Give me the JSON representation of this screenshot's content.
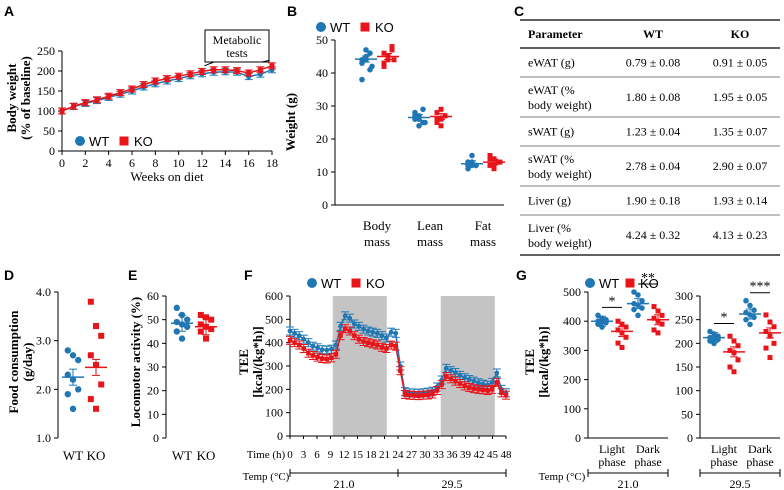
{
  "colors": {
    "wt": "#1f77b4",
    "ko": "#e8141a",
    "shade": "#c4c4c4"
  },
  "legend": {
    "wt": "WT",
    "ko": "KO"
  },
  "panel_labels": {
    "a": "A",
    "b": "B",
    "c": "C",
    "d": "D",
    "e": "E",
    "f": "F",
    "g": "G"
  },
  "table": {
    "headers": [
      "Parameter",
      "WT",
      "KO"
    ],
    "rows": [
      {
        "param": [
          "eWAT (g)"
        ],
        "wt": "0.79 ± 0.08",
        "ko": "0.91 ± 0.05"
      },
      {
        "param": [
          "eWAT (%",
          "body weight)"
        ],
        "wt": "1.80 ± 0.08",
        "ko": "1.95 ± 0.05"
      },
      {
        "param": [
          "sWAT (g)"
        ],
        "wt": "1.23 ± 0.04",
        "ko": "1.35 ± 0.07"
      },
      {
        "param": [
          "sWAT (%",
          "body weight)"
        ],
        "wt": "2.78 ± 0.04",
        "ko": "2.90 ± 0.07"
      },
      {
        "param": [
          "Liver (g)"
        ],
        "wt": "1.90 ± 0.18",
        "ko": "1.93 ± 0.14"
      },
      {
        "param": [
          "Liver (%",
          "body weight)"
        ],
        "wt": "4.24 ± 0.32",
        "ko": "4.13 ± 0.23"
      }
    ]
  },
  "chart_data": [
    {
      "id": "A",
      "type": "line",
      "ylabel": [
        "Body weight",
        "(% of baseline)"
      ],
      "xlabel": "Weeks on diet",
      "xlim": [
        0,
        18
      ],
      "ylim": [
        0,
        250
      ],
      "xticks": [
        "0",
        "2",
        "4",
        "6",
        "8",
        "10",
        "12",
        "14",
        "16",
        "18"
      ],
      "yticks": [
        "0",
        "50",
        "100",
        "150",
        "200",
        "250"
      ],
      "annotation": [
        "Metabolic",
        "tests"
      ],
      "x": [
        0,
        1,
        2,
        3,
        4,
        5,
        6,
        7,
        8,
        9,
        10,
        11,
        12,
        13,
        14,
        15,
        16,
        17,
        18
      ],
      "series": [
        {
          "name": "WT",
          "values": [
            100,
            111,
            119,
            126,
            134,
            142,
            150,
            160,
            168,
            175,
            181,
            188,
            193,
            197,
            198,
            197,
            186,
            192,
            203
          ]
        },
        {
          "name": "KO",
          "values": [
            100,
            112,
            121,
            128,
            137,
            146,
            155,
            166,
            175,
            181,
            187,
            193,
            199,
            203,
            203,
            201,
            195,
            203,
            213
          ]
        }
      ]
    },
    {
      "id": "B",
      "type": "scatter",
      "ylabel": "Weight (g)",
      "categories": [
        [
          "Body",
          "mass"
        ],
        [
          "Lean",
          "mass"
        ],
        [
          "Fat",
          "mass"
        ]
      ],
      "ylim": [
        0,
        50
      ],
      "yticks": [
        "0",
        "10",
        "20",
        "30",
        "40",
        "50"
      ],
      "series": [
        {
          "name": "WT",
          "mean": [
            44.2,
            26.5,
            12.5
          ],
          "points": [
            [
              44,
              45,
              46,
              43,
              47,
              41,
              38,
              44,
              42
            ],
            [
              27,
              26,
              25,
              28,
              24,
              29,
              26,
              27,
              25
            ],
            [
              12,
              13,
              12,
              11,
              15,
              12,
              13,
              12
            ]
          ]
        },
        {
          "name": "KO",
          "mean": [
            45.0,
            26.8,
            13.0
          ],
          "points": [
            [
              46,
              44,
              47,
              43,
              45,
              48,
              42,
              45,
              44
            ],
            [
              28,
              26,
              27,
              25,
              29,
              27,
              26,
              24
            ],
            [
              14,
              12,
              13,
              15,
              11,
              13,
              12,
              14,
              13
            ]
          ]
        }
      ]
    },
    {
      "id": "D",
      "type": "scatter",
      "ylabel": [
        "Food consumption",
        "(g/day)"
      ],
      "categories": [
        "WT",
        "KO"
      ],
      "ylim": [
        1.0,
        4.0
      ],
      "yticks": [
        "1.0",
        "2.0",
        "3.0",
        "4.0"
      ],
      "series": [
        {
          "name": "WT",
          "mean": 2.25,
          "points": [
            2.8,
            2.7,
            2.6,
            2.3,
            2.2,
            2.0,
            1.9,
            1.6
          ]
        },
        {
          "name": "KO",
          "mean": 2.45,
          "points": [
            3.8,
            3.3,
            3.1,
            2.7,
            2.5,
            2.1,
            1.8,
            1.6
          ]
        }
      ]
    },
    {
      "id": "E",
      "type": "scatter",
      "ylabel": "Locomotor activity (%)",
      "categories": [
        "WT",
        "KO"
      ],
      "ylim": [
        0,
        60
      ],
      "yticks": [
        "0",
        "10",
        "20",
        "30",
        "40",
        "50",
        "60"
      ],
      "series": [
        {
          "name": "WT",
          "mean": 48.5,
          "points": [
            55,
            52,
            50,
            49,
            48,
            47,
            45,
            42
          ]
        },
        {
          "name": "KO",
          "mean": 47.0,
          "points": [
            52,
            51,
            50,
            48,
            47,
            46,
            45,
            42
          ]
        }
      ]
    },
    {
      "id": "F",
      "type": "line",
      "ylabel": [
        "TEE",
        "[kcal/(kg*h)]"
      ],
      "xlabel_prefix": "Time (h)",
      "xticks": [
        "0",
        "3",
        "6",
        "9",
        "12",
        "15",
        "18",
        "21",
        "24",
        "27",
        "30",
        "33",
        "36",
        "39",
        "42",
        "45",
        "48"
      ],
      "xlim": [
        0,
        48
      ],
      "ylim": [
        0,
        600
      ],
      "yticks": [
        "0",
        "100",
        "200",
        "300",
        "400",
        "500",
        "600"
      ],
      "dark_phases": [
        [
          9.5,
          21.5
        ],
        [
          33.5,
          45.5
        ]
      ],
      "temp_label": "Temp (°C)",
      "temps": [
        {
          "label": "21.0",
          "range": [
            0,
            24
          ]
        },
        {
          "label": "29.5",
          "range": [
            24,
            48
          ]
        }
      ],
      "series": [
        {
          "name": "WT",
          "values": [
            450,
            440,
            430,
            415,
            400,
            385,
            378,
            370,
            368,
            372,
            390,
            470,
            515,
            505,
            480,
            470,
            458,
            450,
            445,
            440,
            430,
            420,
            445,
            440,
            300,
            190,
            185,
            184,
            183,
            185,
            188,
            192,
            210,
            240,
            290,
            280,
            272,
            260,
            250,
            242,
            235,
            228,
            222,
            218,
            230,
            270,
            200,
            185
          ]
        },
        {
          "name": "KO",
          "values": [
            410,
            400,
            390,
            375,
            355,
            345,
            338,
            332,
            330,
            335,
            350,
            430,
            460,
            450,
            430,
            415,
            405,
            400,
            395,
            390,
            380,
            375,
            390,
            385,
            280,
            178,
            175,
            174,
            173,
            175,
            176,
            180,
            195,
            220,
            255,
            245,
            235,
            225,
            215,
            208,
            203,
            200,
            198,
            195,
            200,
            230,
            185,
            175
          ]
        }
      ]
    },
    {
      "id": "G",
      "type": "scatter",
      "ylabel": [
        "TEE",
        "[kcal/(kg*h)]"
      ],
      "temp_label": "Temp (°C)",
      "panels": [
        {
          "temp": "21.0",
          "ylim": [
            0,
            500
          ],
          "yticks": [
            "0",
            "100",
            "200",
            "300",
            "400",
            "500"
          ],
          "categories": [
            [
              "Light",
              "phase"
            ],
            [
              "Dark",
              "phase"
            ]
          ],
          "significance": [
            "*",
            "**"
          ],
          "series": [
            {
              "name": "WT",
              "mean": [
                400,
                460
              ],
              "points": [
                [
                  420,
                  410,
                  405,
                  400,
                  398,
                  395,
                  390,
                  380
                ],
                [
                  500,
                  490,
                  470,
                  460,
                  455,
                  445,
                  440,
                  420
                ]
              ]
            },
            {
              "name": "KO",
              "mean": [
                365,
                405
              ],
              "points": [
                [
                  400,
                  390,
                  380,
                  370,
                  360,
                  345,
                  325,
                  310
                ],
                [
                  450,
                  435,
                  420,
                  410,
                  400,
                  390,
                  370,
                  360
                ]
              ]
            }
          ]
        },
        {
          "temp": "29.5",
          "ylim": [
            0,
            300
          ],
          "yticks": [
            "0",
            "50",
            "100",
            "150",
            "200",
            "250",
            "300"
          ],
          "categories": [
            [
              "Light",
              "phase"
            ],
            [
              "Dark",
              "phase"
            ]
          ],
          "significance": [
            "*",
            "***"
          ],
          "series": [
            {
              "name": "WT",
              "mean": [
                212,
                262
              ],
              "points": [
                [
                  225,
                  220,
                  215,
                  212,
                  210,
                  208,
                  205,
                  200
                ],
                [
                  290,
                  280,
                  270,
                  265,
                  260,
                  255,
                  250,
                  240
                ]
              ]
            },
            {
              "name": "KO",
              "mean": [
                182,
                222
              ],
              "points": [
                [
                  215,
                  205,
                  195,
                  185,
                  180,
                  165,
                  150,
                  140
                ],
                [
                  260,
                  245,
                  235,
                  225,
                  215,
                  200,
                  190,
                  170
                ]
              ]
            }
          ]
        }
      ]
    }
  ]
}
